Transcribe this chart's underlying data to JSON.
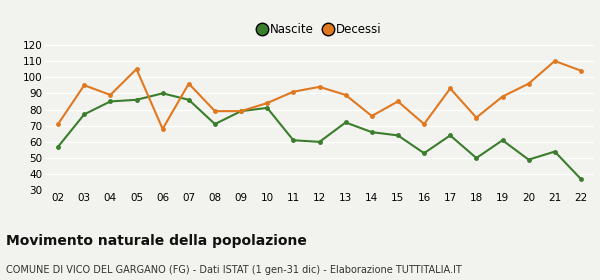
{
  "years": [
    "02",
    "03",
    "04",
    "05",
    "06",
    "07",
    "08",
    "09",
    "10",
    "11",
    "12",
    "13",
    "14",
    "15",
    "16",
    "17",
    "18",
    "19",
    "20",
    "21",
    "22"
  ],
  "nascite": [
    57,
    77,
    85,
    86,
    90,
    86,
    71,
    79,
    81,
    61,
    60,
    72,
    66,
    64,
    53,
    64,
    50,
    61,
    49,
    54,
    37
  ],
  "decessi": [
    71,
    95,
    89,
    105,
    68,
    96,
    79,
    79,
    84,
    91,
    94,
    89,
    76,
    85,
    71,
    93,
    75,
    88,
    96,
    110,
    104
  ],
  "nascite_color": "#3a7d2c",
  "decessi_color": "#e07820",
  "background_color": "#f2f2ee",
  "grid_color": "#ffffff",
  "ylim": [
    30,
    120
  ],
  "yticks": [
    30,
    40,
    50,
    60,
    70,
    80,
    90,
    100,
    110,
    120
  ],
  "title": "Movimento naturale della popolazione",
  "subtitle": "COMUNE DI VICO DEL GARGANO (FG) - Dati ISTAT (1 gen-31 dic) - Elaborazione TUTTITALIA.IT",
  "legend_nascite": "Nascite",
  "legend_decessi": "Decessi",
  "title_fontsize": 10,
  "subtitle_fontsize": 7,
  "legend_fontsize": 8.5,
  "marker_size": 3.5,
  "line_width": 1.5
}
